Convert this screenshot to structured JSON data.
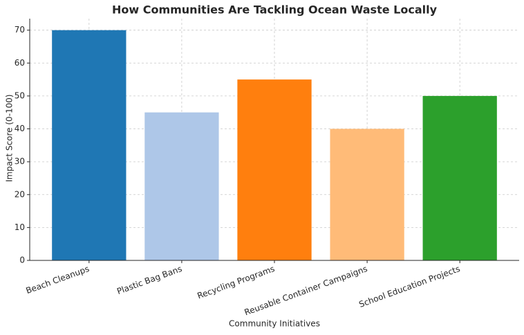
{
  "chart_data": {
    "type": "bar",
    "title": "How Communities Are Tackling Ocean Waste Locally",
    "x_label": "Community Initiatives",
    "y_label": "Impact Score (0-100)",
    "categories": [
      "Beach Cleanups",
      "Plastic Bag Bans",
      "Recycling Programs",
      "Reusable Container Campaigns",
      "School Education Projects"
    ],
    "values": [
      70,
      45,
      55,
      40,
      50
    ],
    "colors": [
      "#1f77b4",
      "#aec7e8",
      "#ff7f0e",
      "#ffbb78",
      "#2ca02c"
    ],
    "ylim": [
      0,
      73.5
    ],
    "yticks": [
      0,
      10,
      20,
      30,
      40,
      50,
      60,
      70
    ],
    "grid": true
  }
}
